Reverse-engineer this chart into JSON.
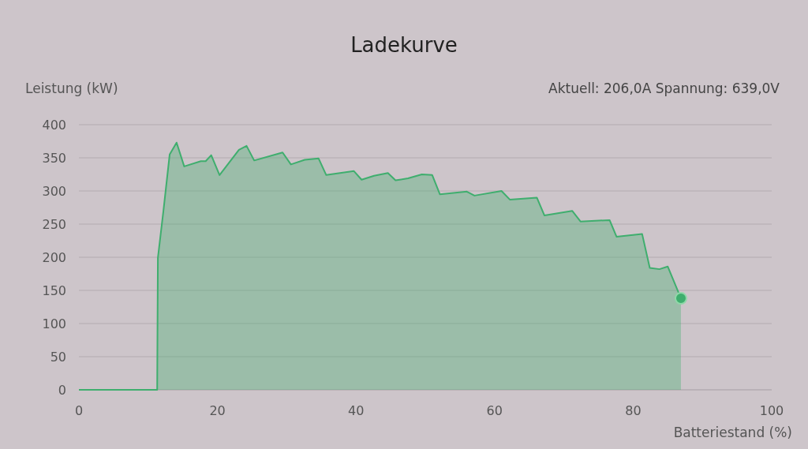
{
  "chart_data": {
    "type": "area",
    "title": "Ladekurve",
    "xlabel": "Batteriestand (%)",
    "ylabel": "Leistung (kW)",
    "annotations": [
      "Aktuell: 206,0A  Spannung: 639,0V"
    ],
    "xlim": [
      0,
      100
    ],
    "xticks": [
      0,
      20,
      40,
      60,
      80,
      100
    ],
    "ylim": [
      0,
      400
    ],
    "yticks": [
      0,
      50,
      100,
      150,
      200,
      250,
      300,
      350,
      400
    ],
    "grid": "y",
    "marker": "none",
    "line_style": "solid",
    "series": [
      {
        "color": "#3fae6e",
        "x": [
          0,
          11.3,
          11.4,
          12.2,
          13.1,
          14.1,
          15.2,
          17.6,
          18.3,
          19.1,
          20.3,
          23.1,
          24.2,
          25.3,
          29.4,
          30.6,
          32.6,
          34.6,
          35.7,
          39.7,
          40.8,
          42.6,
          44.6,
          45.7,
          47.5,
          49.5,
          51,
          52.1,
          56,
          57.1,
          61,
          62.2,
          66.1,
          67.2,
          71.2,
          72.4,
          76.6,
          77.6,
          81.3,
          82.4,
          83.8,
          85,
          86.9
        ],
        "values": [
          0,
          0,
          199,
          270,
          355,
          373,
          337,
          345,
          345,
          354,
          324,
          362,
          368,
          346,
          358,
          340,
          347,
          349,
          324,
          330,
          317,
          323,
          327,
          316,
          319,
          325,
          324,
          295,
          299,
          293,
          300,
          287,
          290,
          263,
          270,
          254,
          256,
          231,
          235,
          184,
          182,
          186,
          138
        ]
      },
      {
        "type": "scatter",
        "color": "#3fae6e",
        "marker": "circle",
        "x": [
          86.9
        ],
        "values": [
          138
        ]
      }
    ]
  }
}
